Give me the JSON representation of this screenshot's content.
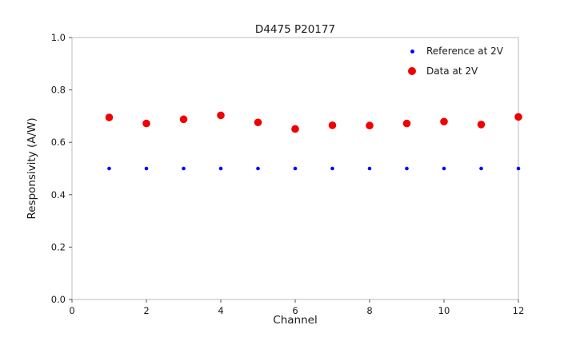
{
  "chart": {
    "title": "D4475 P20177",
    "xlabel": "Channel",
    "ylabel": "Responsivity (A/W)"
  },
  "chart_data": {
    "type": "scatter",
    "title": "D4475 P20177",
    "xlabel": "Channel",
    "ylabel": "Responsivity (A/W)",
    "xlim": [
      0,
      12
    ],
    "ylim": [
      0.0,
      1.0
    ],
    "xticks": [
      0,
      2,
      4,
      6,
      8,
      10,
      12
    ],
    "xtick_labels": [
      "0",
      "2",
      "4",
      "6",
      "8",
      "10",
      "12"
    ],
    "yticks": [
      0.0,
      0.2,
      0.4,
      0.6,
      0.8,
      1.0
    ],
    "ytick_labels": [
      "0.0",
      "0.2",
      "0.4",
      "0.6",
      "0.8",
      "1.0"
    ],
    "grid": false,
    "legend_position": "upper right",
    "x": [
      1,
      2,
      3,
      4,
      5,
      6,
      7,
      8,
      9,
      10,
      11,
      12
    ],
    "series": [
      {
        "name": "Reference at 2V",
        "key": "reference",
        "color": "#0000ff",
        "marker_radius": 2.3,
        "values": [
          0.5,
          0.5,
          0.5,
          0.5,
          0.5,
          0.5,
          0.5,
          0.5,
          0.5,
          0.5,
          0.5,
          0.5
        ]
      },
      {
        "name": "Data at 2V",
        "key": "data",
        "color": "#f00000",
        "marker_radius": 4.8,
        "values": [
          0.695,
          0.672,
          0.688,
          0.703,
          0.676,
          0.651,
          0.665,
          0.664,
          0.672,
          0.679,
          0.668,
          0.697
        ]
      }
    ],
    "axis_border_color": "#bbbbbb",
    "tick_color": "#555555",
    "text_color": "#1a1a1a"
  }
}
